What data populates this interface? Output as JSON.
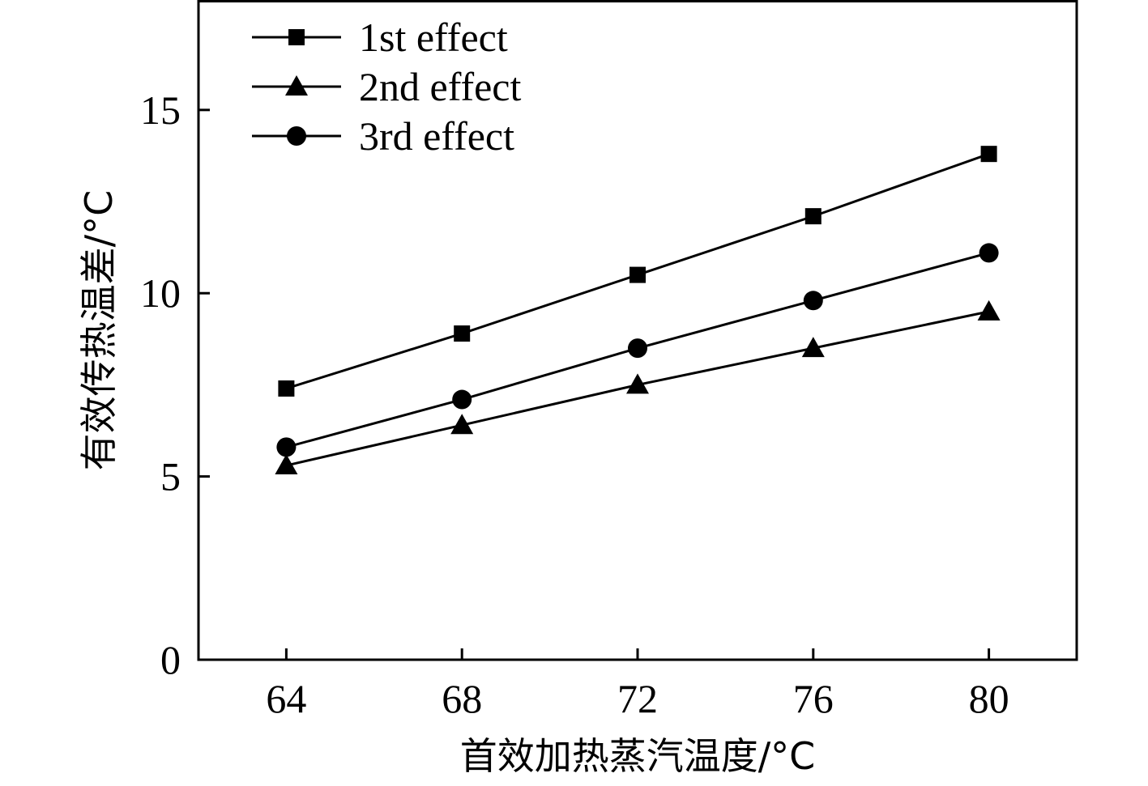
{
  "chart_data": {
    "type": "line",
    "xlabel": "首效加热蒸汽温度/°C",
    "ylabel": "有效传热温差/°C",
    "xlim": [
      62,
      82
    ],
    "ylim": [
      0,
      18
    ],
    "x": [
      64,
      68,
      72,
      76,
      80
    ],
    "xticks": [
      "64",
      "68",
      "72",
      "76",
      "80"
    ],
    "yticks": [
      "0",
      "5",
      "10",
      "15"
    ],
    "grid": false,
    "legend_position": "top-left",
    "series": [
      {
        "name": "1st effect",
        "marker": "square",
        "values": [
          7.4,
          8.9,
          10.5,
          12.1,
          13.8
        ]
      },
      {
        "name": "2nd effect",
        "marker": "triangle",
        "values": [
          5.3,
          6.4,
          7.5,
          8.5,
          9.5
        ]
      },
      {
        "name": "3rd effect",
        "marker": "circle",
        "values": [
          5.8,
          7.1,
          8.5,
          9.8,
          11.1
        ]
      }
    ],
    "colors": {
      "line": "#000000",
      "marker": "#000000",
      "axis": "#000000"
    }
  }
}
